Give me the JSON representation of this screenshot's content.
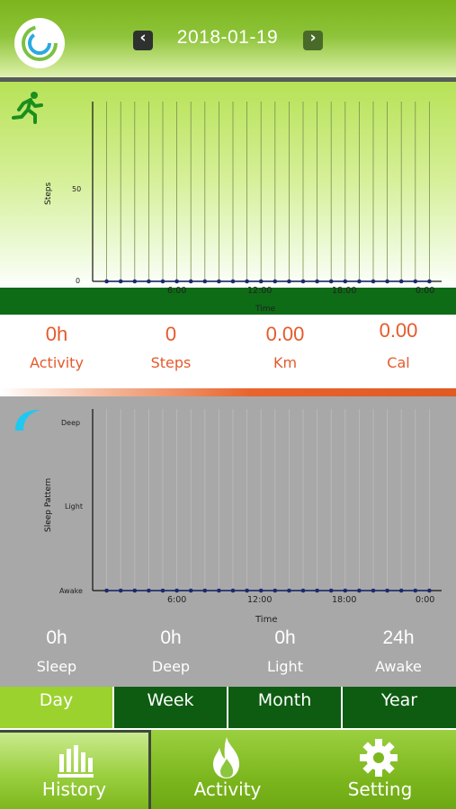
{
  "header": {
    "date": "2018-01-19",
    "prev_icon": "chevron-left-icon",
    "next_icon": "chevron-right-icon",
    "logo_icon": "app-logo-icon"
  },
  "activity_chart": {
    "icon": "running-person-icon",
    "ylabel": "Steps",
    "yticks": [
      "0",
      "50"
    ],
    "xlabel": "Time",
    "xticks": [
      "6:00",
      "12:00",
      "18:00",
      "0:00"
    ]
  },
  "activity_stats": [
    {
      "value": "0h",
      "label": "Activity"
    },
    {
      "value": "0",
      "label": "Steps"
    },
    {
      "value": "0.00",
      "label": "Km"
    },
    {
      "value": "0.00",
      "label": "Cal"
    }
  ],
  "sleep_chart": {
    "icon": "moon-icon",
    "ylabel": "Sleep Pattern",
    "yticks": [
      "Awake",
      "Light",
      "Deep"
    ],
    "xlabel": "Time",
    "xticks": [
      "6:00",
      "12:00",
      "18:00",
      "0:00"
    ]
  },
  "sleep_stats": [
    {
      "value": "0h",
      "label": "Sleep"
    },
    {
      "value": "0h",
      "label": "Deep"
    },
    {
      "value": "0h",
      "label": "Light"
    },
    {
      "value": "24h",
      "label": "Awake"
    }
  ],
  "period_tabs": [
    "Day",
    "Week",
    "Month",
    "Year"
  ],
  "period_active": "Day",
  "bottom_nav": [
    {
      "label": "History",
      "icon": "bar-chart-icon",
      "active": true
    },
    {
      "label": "Activity",
      "icon": "flame-icon",
      "active": false
    },
    {
      "label": "Setting",
      "icon": "gear-icon",
      "active": false
    }
  ],
  "colors": {
    "accent_green": "#7bb51c",
    "dark_green": "#0e6b16",
    "orange": "#e55a2b",
    "sleep_bg": "#a8a8a8",
    "moon": "#1ec8f0"
  },
  "chart_data": [
    {
      "type": "line",
      "ylabel": "Steps",
      "xlabel": "Time",
      "ylim": [
        0,
        100
      ],
      "x": [
        "0:00",
        "1:00",
        "2:00",
        "3:00",
        "4:00",
        "5:00",
        "6:00",
        "7:00",
        "8:00",
        "9:00",
        "10:00",
        "11:00",
        "12:00",
        "13:00",
        "14:00",
        "15:00",
        "16:00",
        "17:00",
        "18:00",
        "19:00",
        "20:00",
        "21:00",
        "22:00",
        "23:00"
      ],
      "values": [
        0,
        0,
        0,
        0,
        0,
        0,
        0,
        0,
        0,
        0,
        0,
        0,
        0,
        0,
        0,
        0,
        0,
        0,
        0,
        0,
        0,
        0,
        0,
        0
      ],
      "grid": "vertical"
    },
    {
      "type": "line",
      "ylabel": "Sleep Pattern",
      "xlabel": "Time",
      "levels": [
        "Awake",
        "Light",
        "Deep"
      ],
      "x": [
        "0:00",
        "1:00",
        "2:00",
        "3:00",
        "4:00",
        "5:00",
        "6:00",
        "7:00",
        "8:00",
        "9:00",
        "10:00",
        "11:00",
        "12:00",
        "13:00",
        "14:00",
        "15:00",
        "16:00",
        "17:00",
        "18:00",
        "19:00",
        "20:00",
        "21:00",
        "22:00",
        "23:00"
      ],
      "values": [
        "Awake",
        "Awake",
        "Awake",
        "Awake",
        "Awake",
        "Awake",
        "Awake",
        "Awake",
        "Awake",
        "Awake",
        "Awake",
        "Awake",
        "Awake",
        "Awake",
        "Awake",
        "Awake",
        "Awake",
        "Awake",
        "Awake",
        "Awake",
        "Awake",
        "Awake",
        "Awake",
        "Awake"
      ],
      "grid": "vertical"
    }
  ]
}
